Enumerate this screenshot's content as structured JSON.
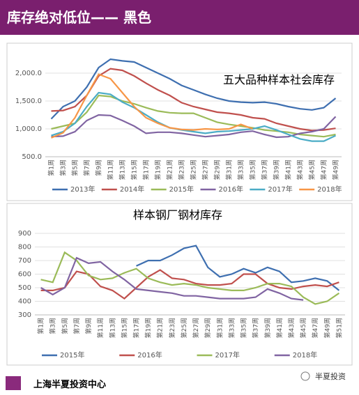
{
  "header": {
    "title": "库存绝对低位—— 黑色"
  },
  "chart_data": [
    {
      "type": "line",
      "title": "五大品种样本社会库存",
      "categories": [
        "第1周",
        "第3周",
        "第5周",
        "第7周",
        "第9周",
        "第11周",
        "第13周",
        "第15周",
        "第17周",
        "第19周",
        "第21周",
        "第23周",
        "第25周",
        "第27周",
        "第29周",
        "第31周",
        "第33周",
        "第35周",
        "第37周",
        "第39周",
        "第41周",
        "第43周",
        "第45周",
        "第47周",
        "第49周"
      ],
      "ylim": [
        500,
        2250
      ],
      "yticks": [
        {
          "value": 500,
          "label": "500.0"
        },
        {
          "value": 1000,
          "label": "1,000.0"
        },
        {
          "value": 1500,
          "label": "1,500.0"
        },
        {
          "value": 2000,
          "label": "2,000.0"
        }
      ],
      "series": [
        {
          "name": "2013年",
          "color": "#3e6fb0",
          "values": [
            1180,
            1400,
            1500,
            1750,
            2100,
            2250,
            2220,
            2200,
            2100,
            2000,
            1900,
            1780,
            1700,
            1620,
            1550,
            1500,
            1480,
            1470,
            1480,
            1450,
            1400,
            1360,
            1340,
            1380,
            1550
          ]
        },
        {
          "name": "2014年",
          "color": "#c0504d",
          "values": [
            1320,
            1330,
            1400,
            1600,
            1950,
            2080,
            2050,
            1950,
            1820,
            1700,
            1600,
            1470,
            1400,
            1350,
            1300,
            1280,
            1250,
            1200,
            1180,
            1100,
            1050,
            1000,
            970,
            980,
            1010
          ]
        },
        {
          "name": "2015年",
          "color": "#9bbb59",
          "values": [
            1000,
            1050,
            1100,
            1300,
            1600,
            1580,
            1500,
            1450,
            1380,
            1320,
            1290,
            1280,
            1280,
            1200,
            1120,
            1080,
            1050,
            1020,
            980,
            960,
            940,
            900,
            880,
            860,
            900
          ]
        },
        {
          "name": "2016年",
          "color": "#8064a2",
          "values": [
            860,
            870,
            950,
            1150,
            1250,
            1240,
            1150,
            1050,
            920,
            940,
            940,
            920,
            890,
            860,
            880,
            900,
            940,
            960,
            900,
            850,
            860,
            920,
            950,
            1000,
            1220
          ]
        },
        {
          "name": "2017年",
          "color": "#4bacc6",
          "values": [
            880,
            950,
            1100,
            1400,
            1650,
            1620,
            1480,
            1380,
            1250,
            1120,
            1020,
            980,
            950,
            920,
            950,
            960,
            980,
            1000,
            1050,
            980,
            900,
            820,
            780,
            780,
            880
          ]
        },
        {
          "name": "2018年",
          "color": "#f79646",
          "values": [
            840,
            930,
            1200,
            1600,
            1980,
            1900,
            1650,
            1400,
            1200,
            1100,
            1020,
            990,
            980,
            1000,
            990,
            1000,
            1080,
            1000,
            null,
            null,
            null,
            null,
            null,
            null,
            null
          ]
        }
      ]
    },
    {
      "type": "line",
      "title": "样本钢厂钢材库存",
      "categories": [
        "第1周",
        "第3周",
        "第5周",
        "第7周",
        "第9周",
        "第11周",
        "第13周",
        "第15周",
        "第17周",
        "第19周",
        "第21周",
        "第23周",
        "第25周",
        "第27周",
        "第29周",
        "第31周",
        "第33周",
        "第35周",
        "第37周",
        "第39周",
        "第41周",
        "第43周",
        "第45周",
        "第47周",
        "第49周",
        "第51周"
      ],
      "ylim": [
        300,
        900
      ],
      "yticks": [
        300,
        400,
        500,
        600,
        700,
        800,
        900
      ],
      "series": [
        {
          "name": "2015年",
          "color": "#3e6fb0",
          "values": [
            null,
            null,
            null,
            null,
            null,
            null,
            null,
            null,
            660,
            700,
            700,
            740,
            790,
            810,
            650,
            580,
            600,
            640,
            610,
            650,
            620,
            540,
            550,
            570,
            550,
            480
          ]
        },
        {
          "name": "2016年",
          "color": "#c0504d",
          "values": [
            480,
            480,
            500,
            620,
            600,
            510,
            480,
            420,
            500,
            580,
            630,
            570,
            560,
            530,
            520,
            520,
            530,
            600,
            600,
            530,
            500,
            490,
            510,
            520,
            510,
            540
          ]
        },
        {
          "name": "2017年",
          "color": "#9bbb59",
          "values": [
            560,
            540,
            760,
            700,
            590,
            560,
            570,
            610,
            640,
            570,
            540,
            520,
            530,
            520,
            500,
            490,
            480,
            480,
            500,
            530,
            530,
            510,
            430,
            380,
            400,
            460
          ]
        },
        {
          "name": "2018年",
          "color": "#8064a2",
          "values": [
            500,
            450,
            500,
            720,
            680,
            690,
            620,
            560,
            490,
            480,
            470,
            460,
            440,
            440,
            430,
            420,
            420,
            420,
            430,
            490,
            460,
            420,
            410,
            null,
            null,
            null
          ]
        }
      ]
    }
  ],
  "footer": {
    "left": "上海半夏投资中心",
    "right": "半夏投资"
  }
}
